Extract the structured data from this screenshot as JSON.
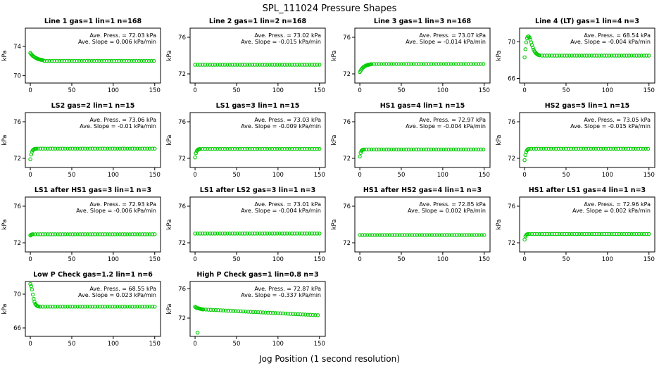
{
  "chart_data": {
    "type": "scatter",
    "suptitle": "SPL_111024  Pressure Shapes",
    "xlabel": "Jog Position (1 second resolution)",
    "point_color": "#00CC00",
    "x_ticks": [
      0,
      50,
      100,
      150
    ],
    "xlim": [
      -6,
      157
    ],
    "panels": [
      {
        "title": "Line 1 gas=1 lin=1 n=168",
        "press_label": "Ave. Press. = 72.03 kPa",
        "slope_label": "Ave. Slope = 0.006 kPa/min",
        "ylabel": "kPa",
        "ylim": [
          69,
          76.5
        ],
        "y_ticks": [
          70,
          74
        ],
        "segments": [
          {
            "type": "points",
            "pts": [
              [
                0,
                73.1
              ],
              [
                1,
                72.95
              ],
              [
                2,
                72.82
              ],
              [
                3,
                72.71
              ],
              [
                4,
                72.62
              ],
              [
                5,
                72.54
              ],
              [
                6,
                72.47
              ],
              [
                7,
                72.41
              ],
              [
                8,
                72.35
              ],
              [
                9,
                72.3
              ],
              [
                10,
                72.26
              ],
              [
                11,
                72.23
              ],
              [
                12,
                72.2
              ],
              [
                13,
                72.17
              ],
              [
                14,
                72.15
              ],
              [
                15,
                72.13
              ]
            ]
          },
          {
            "type": "flat",
            "from": 17,
            "to": 150,
            "step": 3,
            "y": 72.02
          }
        ]
      },
      {
        "title": "Line 2 gas=1 lin=2 n=168",
        "press_label": "Ave. Press. = 73.02 kPa",
        "slope_label": "Ave. Slope = -0.015 kPa/min",
        "ylabel": "kPa",
        "ylim": [
          71,
          77
        ],
        "y_ticks": [
          72,
          76
        ],
        "segments": [
          {
            "type": "flat",
            "from": 0,
            "to": 150,
            "step": 3,
            "y": 73.0
          }
        ]
      },
      {
        "title": "Line 3 gas=1 lin=3 n=168",
        "press_label": "Ave. Press. = 73.07 kPa",
        "slope_label": "Ave. Slope = -0.014 kPa/min",
        "ylabel": "kPa",
        "ylim": [
          71,
          77
        ],
        "y_ticks": [
          72,
          76
        ],
        "segments": [
          {
            "type": "points",
            "pts": [
              [
                0,
                72.2
              ],
              [
                1,
                72.36
              ],
              [
                2,
                72.5
              ],
              [
                3,
                72.62
              ],
              [
                4,
                72.71
              ],
              [
                5,
                72.78
              ],
              [
                6,
                72.84
              ],
              [
                7,
                72.89
              ],
              [
                8,
                72.93
              ],
              [
                9,
                72.96
              ],
              [
                10,
                72.99
              ],
              [
                11,
                73.01
              ],
              [
                12,
                73.03
              ],
              [
                13,
                73.05
              ],
              [
                14,
                73.06
              ]
            ]
          },
          {
            "type": "flat",
            "from": 17,
            "to": 150,
            "step": 3,
            "y": 73.08
          }
        ]
      },
      {
        "title": "Line 4 (LT) gas=1 lin=4 n=3",
        "press_label": "Ave. Press. = 68.54 kPa",
        "slope_label": "Ave. Slope = -0.004 kPa/min",
        "ylabel": "kPa",
        "ylim": [
          65.5,
          71.5
        ],
        "y_ticks": [
          66,
          70
        ],
        "segments": [
          {
            "type": "points",
            "pts": [
              [
                0,
                68.3
              ],
              [
                1,
                69.2
              ],
              [
                2,
                69.95
              ],
              [
                3,
                70.4
              ],
              [
                4,
                70.58
              ],
              [
                5,
                70.6
              ],
              [
                6,
                70.48
              ],
              [
                7,
                70.25
              ],
              [
                8,
                69.95
              ],
              [
                9,
                69.65
              ],
              [
                10,
                69.38
              ],
              [
                11,
                69.15
              ],
              [
                12,
                68.97
              ],
              [
                13,
                68.84
              ],
              [
                14,
                68.74
              ],
              [
                15,
                68.66
              ],
              [
                16,
                68.6
              ],
              [
                17,
                68.56
              ],
              [
                18,
                68.53
              ]
            ]
          },
          {
            "type": "flat",
            "from": 21,
            "to": 150,
            "step": 3,
            "y": 68.5
          }
        ]
      },
      {
        "title": "LS2 gas=2 lin=1 n=15",
        "press_label": "Ave. Press. = 73.06 kPa",
        "slope_label": "Ave. Slope = -0.01 kPa/min",
        "ylabel": "kPa",
        "ylim": [
          71,
          77
        ],
        "y_ticks": [
          72,
          76
        ],
        "segments": [
          {
            "type": "points",
            "pts": [
              [
                0,
                71.9
              ],
              [
                1,
                72.42
              ],
              [
                2,
                72.72
              ],
              [
                3,
                72.88
              ],
              [
                4,
                72.97
              ],
              [
                5,
                73.02
              ],
              [
                6,
                73.04
              ],
              [
                7,
                73.05
              ]
            ]
          },
          {
            "type": "flat",
            "from": 9,
            "to": 150,
            "step": 3,
            "y": 73.06
          }
        ]
      },
      {
        "title": "LS1 gas=3 lin=1 n=15",
        "press_label": "Ave. Press. = 73.03 kPa",
        "slope_label": "Ave. Slope = -0.009 kPa/min",
        "ylabel": "kPa",
        "ylim": [
          71,
          77
        ],
        "y_ticks": [
          72,
          76
        ],
        "segments": [
          {
            "type": "points",
            "pts": [
              [
                0,
                72.1
              ],
              [
                1,
                72.56
              ],
              [
                2,
                72.8
              ],
              [
                3,
                72.92
              ],
              [
                4,
                72.98
              ],
              [
                5,
                73.01
              ],
              [
                6,
                73.02
              ]
            ]
          },
          {
            "type": "flat",
            "from": 9,
            "to": 150,
            "step": 3,
            "y": 73.03
          }
        ]
      },
      {
        "title": "HS1 gas=4 lin=1 n=15",
        "press_label": "Ave. Press. = 72.97 kPa",
        "slope_label": "Ave. Slope = -0.004 kPa/min",
        "ylabel": "kPa",
        "ylim": [
          71,
          77
        ],
        "y_ticks": [
          72,
          76
        ],
        "segments": [
          {
            "type": "points",
            "pts": [
              [
                0,
                72.2
              ],
              [
                1,
                72.6
              ],
              [
                2,
                72.82
              ],
              [
                3,
                72.91
              ],
              [
                4,
                72.95
              ],
              [
                5,
                72.96
              ]
            ]
          },
          {
            "type": "flat",
            "from": 8,
            "to": 150,
            "step": 3,
            "y": 72.97
          }
        ]
      },
      {
        "title": "HS2 gas=5 lin=1 n=15",
        "press_label": "Ave. Press. = 73.05 kPa",
        "slope_label": "Ave. Slope = -0.015 kPa/min",
        "ylabel": "kPa",
        "ylim": [
          71,
          77
        ],
        "y_ticks": [
          72,
          76
        ],
        "segments": [
          {
            "type": "points",
            "pts": [
              [
                0,
                71.8
              ],
              [
                1,
                72.36
              ],
              [
                2,
                72.7
              ],
              [
                3,
                72.89
              ],
              [
                4,
                72.99
              ],
              [
                5,
                73.03
              ]
            ]
          },
          {
            "type": "flat",
            "from": 8,
            "to": 150,
            "step": 3,
            "y": 73.05
          }
        ]
      },
      {
        "title": "LS1 after HS1 gas=3 lin=1 n=3",
        "press_label": "Ave. Press. = 72.93 kPa",
        "slope_label": "Ave. Slope = -0.006 kPa/min",
        "ylabel": "kPa",
        "ylim": [
          71,
          77
        ],
        "y_ticks": [
          72,
          76
        ],
        "segments": [
          {
            "type": "points",
            "pts": [
              [
                0,
                72.8
              ],
              [
                1,
                72.88
              ],
              [
                2,
                72.91
              ]
            ]
          },
          {
            "type": "flat",
            "from": 3,
            "to": 150,
            "step": 3,
            "y": 72.93
          }
        ]
      },
      {
        "title": "LS1 after LS2 gas=3 lin=1 n=3",
        "press_label": "Ave. Press. = 73.01 kPa",
        "slope_label": "Ave. Slope = -0.004 kPa/min",
        "ylabel": "kPa",
        "ylim": [
          71,
          77
        ],
        "y_ticks": [
          72,
          76
        ],
        "segments": [
          {
            "type": "flat",
            "from": 0,
            "to": 150,
            "step": 3,
            "y": 73.01
          }
        ]
      },
      {
        "title": "HS1 after HS2 gas=4 lin=1 n=3",
        "press_label": "Ave. Press. = 72.85 kPa",
        "slope_label": "Ave. Slope = 0.002 kPa/min",
        "ylabel": "kPa",
        "ylim": [
          71,
          77
        ],
        "y_ticks": [
          72,
          76
        ],
        "segments": [
          {
            "type": "flat",
            "from": 0,
            "to": 150,
            "step": 3,
            "y": 72.85
          }
        ]
      },
      {
        "title": "HS1 after LS1 gas=4 lin=1 n=3",
        "press_label": "Ave. Press. = 72.96 kPa",
        "slope_label": "Ave. Slope = 0.002 kPa/min",
        "ylabel": "kPa",
        "ylim": [
          71,
          77
        ],
        "y_ticks": [
          72,
          76
        ],
        "segments": [
          {
            "type": "points",
            "pts": [
              [
                0,
                72.35
              ],
              [
                1,
                72.7
              ],
              [
                2,
                72.86
              ],
              [
                3,
                72.92
              ],
              [
                4,
                72.95
              ]
            ]
          },
          {
            "type": "flat",
            "from": 6,
            "to": 150,
            "step": 3,
            "y": 72.96
          }
        ]
      },
      {
        "title": "Low P Check gas=1.2 lin=1 n=6",
        "press_label": "Ave. Press. = 68.55 kPa",
        "slope_label": "Ave. Slope = 0.023 kPa/min",
        "ylabel": "kPa",
        "ylim": [
          65,
          71.5
        ],
        "y_ticks": [
          66,
          70
        ],
        "segments": [
          {
            "type": "points",
            "pts": [
              [
                0,
                71.2
              ],
              [
                1,
                70.95
              ],
              [
                2,
                70.55
              ],
              [
                3,
                69.95
              ],
              [
                4,
                69.45
              ],
              [
                5,
                69.08
              ],
              [
                6,
                68.85
              ],
              [
                7,
                68.71
              ],
              [
                8,
                68.62
              ],
              [
                9,
                68.57
              ],
              [
                10,
                68.54
              ]
            ]
          },
          {
            "type": "flat",
            "from": 12,
            "to": 150,
            "step": 3,
            "y": 68.52
          }
        ]
      },
      {
        "title": "High P Check gas=1 lin=0.8 n=3",
        "press_label": "Ave. Press. = 72.87 kPa",
        "slope_label": "Ave. Slope = -0.337 kPa/min",
        "ylabel": "kPa",
        "ylim": [
          69.5,
          77
        ],
        "y_ticks": [
          72,
          76
        ],
        "segments": [
          {
            "type": "points",
            "pts": [
              [
                0,
                73.55
              ],
              [
                1,
                73.45
              ],
              [
                2,
                73.38
              ],
              [
                3,
                70.0
              ],
              [
                4,
                73.34
              ],
              [
                5,
                73.3
              ],
              [
                6,
                73.27
              ],
              [
                7,
                73.24
              ],
              [
                8,
                73.21
              ],
              [
                9,
                73.19
              ]
            ]
          },
          {
            "type": "linear",
            "from": 10,
            "to": 150,
            "step": 3,
            "y1": 73.18,
            "y2": 72.38
          }
        ]
      }
    ]
  }
}
